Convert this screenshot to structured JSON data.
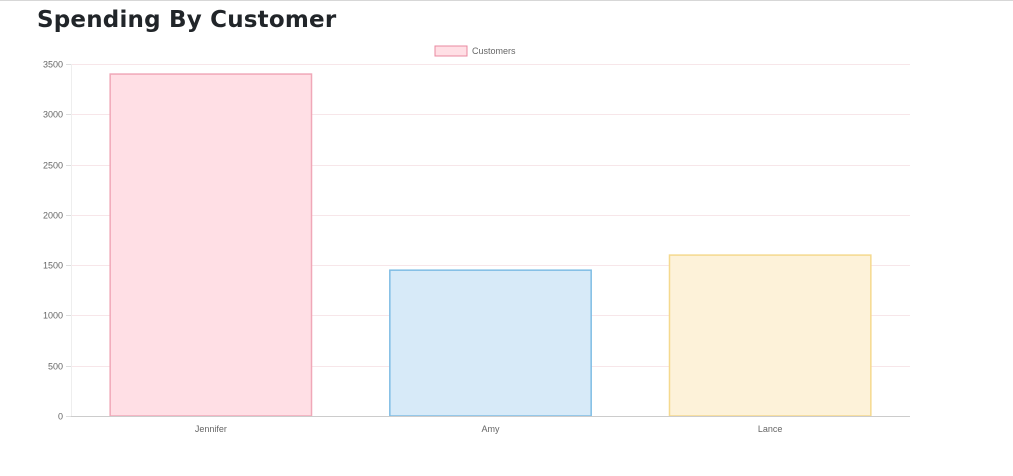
{
  "page": {
    "title": "Spending By Customer"
  },
  "chart_data": {
    "type": "bar",
    "title": "",
    "xlabel": "",
    "ylabel": "",
    "categories": [
      "Jennifer",
      "Amy",
      "Lance"
    ],
    "series": [
      {
        "name": "Customers",
        "values": [
          3400,
          1450,
          1600
        ],
        "fill_colors": [
          "#ffdfe5",
          "#d7eaf8",
          "#fdf2d9"
        ],
        "border_colors": [
          "#f0a8b8",
          "#7fbde4",
          "#f5d98e"
        ]
      }
    ],
    "ylim": [
      0,
      3500
    ],
    "yticks": [
      0,
      500,
      1000,
      1500,
      2000,
      2500,
      3000,
      3500
    ],
    "grid": true,
    "gridline_color": "#f7e6e9",
    "legend": {
      "position": "top-center",
      "swatch_fill": "#ffdfe5",
      "swatch_border": "#e88aa0"
    }
  }
}
